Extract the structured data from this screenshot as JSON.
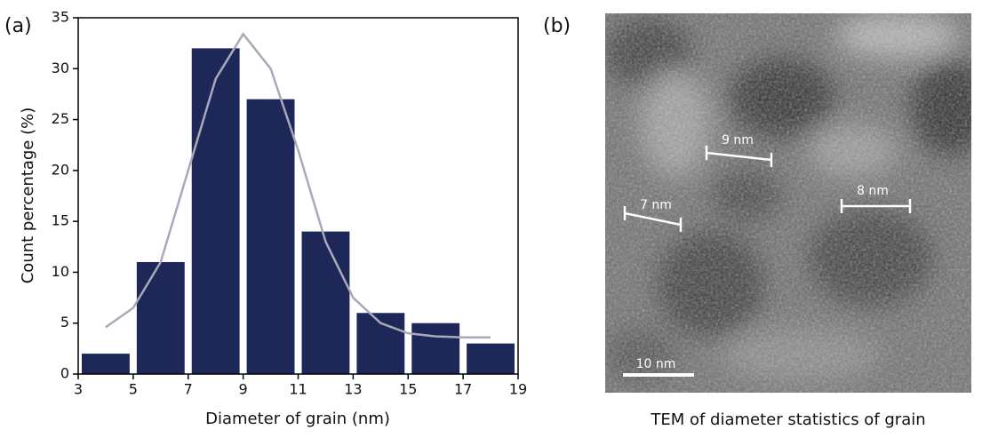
{
  "chart_data": {
    "type": "histogram",
    "xlabel": "Diameter of grain (nm)",
    "ylabel": "Count percentage (%)",
    "bins": [
      3,
      5,
      7,
      9,
      11,
      13,
      15,
      17,
      19
    ],
    "values": [
      2,
      11,
      32,
      27,
      14,
      6,
      5,
      3
    ],
    "color": "#1d2858",
    "fit": {
      "color": "#a9a9ba",
      "x": [
        4,
        5,
        6,
        7,
        8,
        9,
        10,
        11,
        12,
        13,
        14,
        15,
        16,
        17,
        18
      ],
      "y": [
        4.6,
        6.5,
        11,
        20,
        29,
        33.4,
        30,
        22,
        13,
        7.5,
        5,
        4,
        3.7,
        3.6,
        3.6
      ]
    },
    "xlim": [
      3,
      19
    ],
    "xticks": [
      3,
      5,
      7,
      9,
      11,
      13,
      15,
      17,
      19
    ],
    "ylim": [
      0,
      35
    ],
    "yticks": [
      0,
      5,
      10,
      15,
      20,
      25,
      30,
      35
    ]
  },
  "panel_labels": [
    "(a)",
    "(b)"
  ],
  "image": {
    "caption": "TEM of diameter statistics of grain",
    "measurements": [
      "9 nm",
      "7 nm",
      "8 nm"
    ],
    "scale_bar": "10 nm"
  }
}
